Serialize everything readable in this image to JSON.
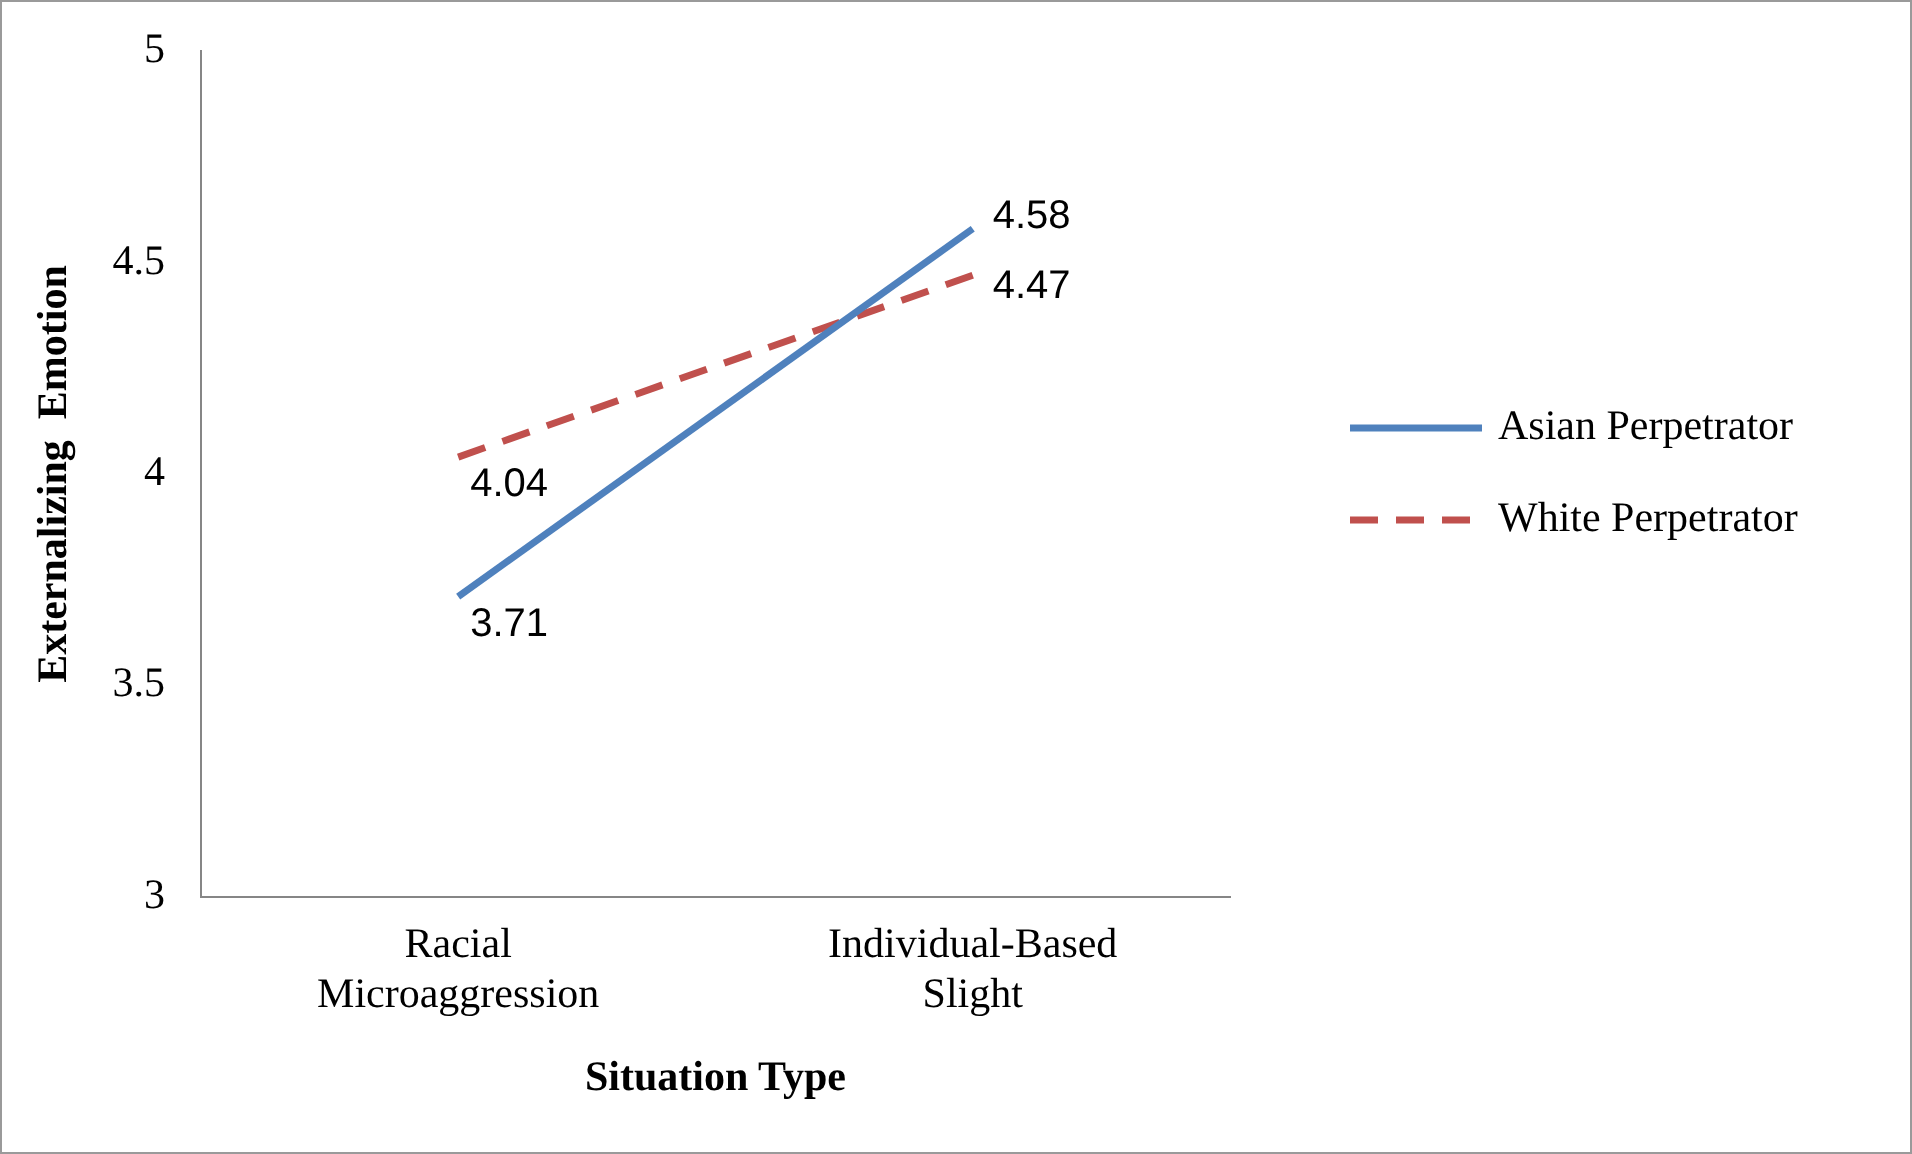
{
  "chart_data": {
    "type": "line",
    "xlabel": "Situation Type",
    "ylabel": "Externalizing  Emotion",
    "categories": [
      "Racial Microaggression",
      "Individual-Based Slight"
    ],
    "series": [
      {
        "name": "Asian Perpetrator",
        "color": "#4f81bd",
        "values": [
          3.71,
          4.58
        ],
        "line_style": "solid"
      },
      {
        "name": "White Perpetrator",
        "color": "#c0504d",
        "values": [
          4.04,
          4.47
        ],
        "line_style": "dashed"
      }
    ],
    "ylim": [
      3,
      5
    ],
    "yticks": [
      3,
      3.5,
      4,
      4.5,
      5
    ],
    "grid": false,
    "legend": "right",
    "marker": "none",
    "data_labels": true
  }
}
